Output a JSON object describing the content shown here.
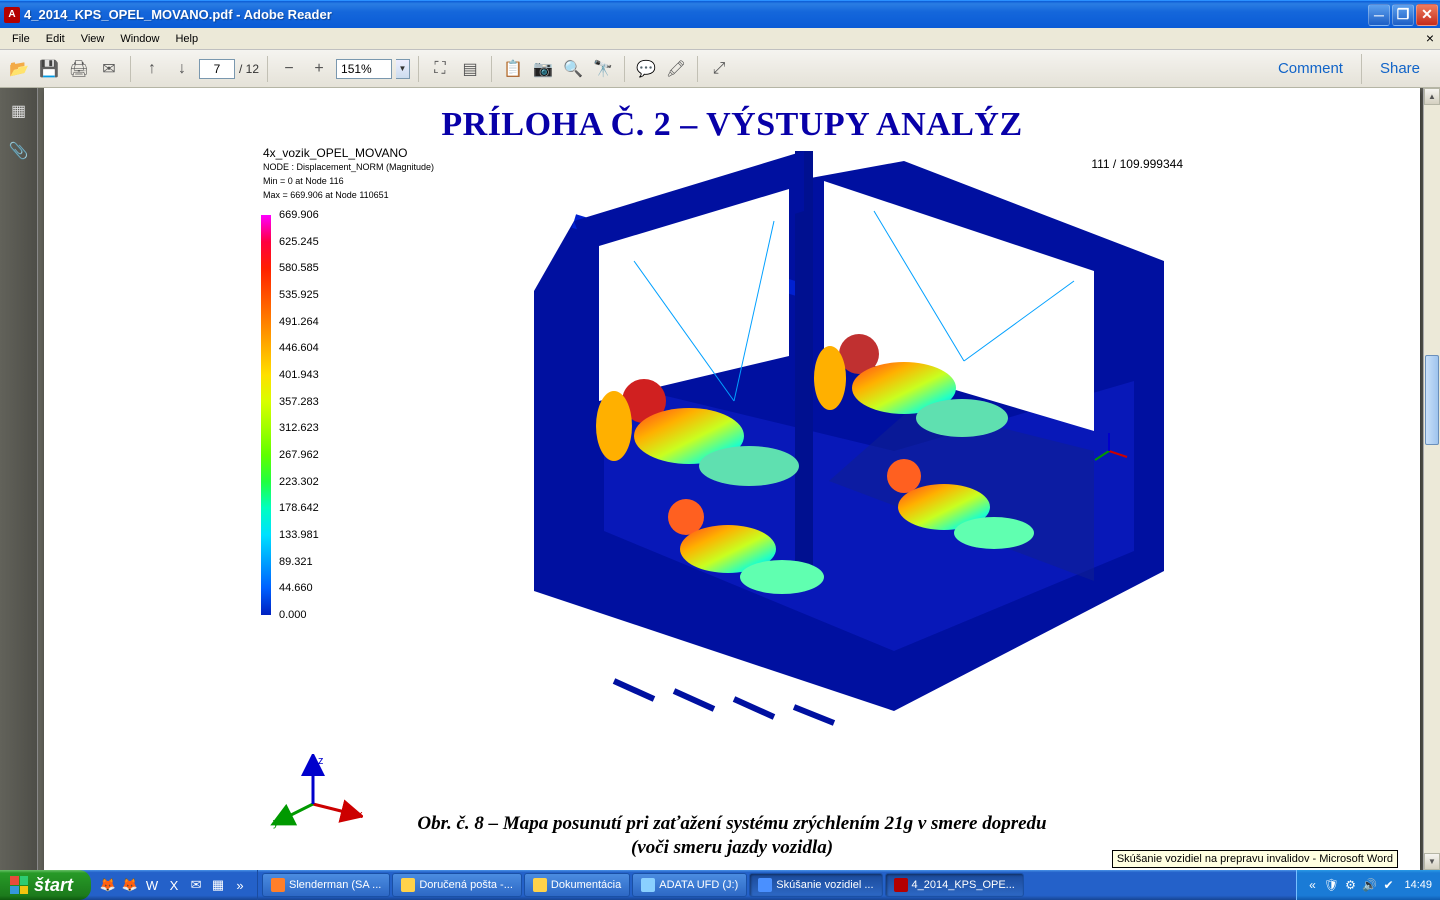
{
  "window": {
    "title": "4_2014_KPS_OPEL_MOVANO.pdf - Adobe Reader",
    "min_glyph": "─",
    "max_glyph": "❐",
    "close_glyph": "✕"
  },
  "menu": {
    "items": [
      "File",
      "Edit",
      "View",
      "Window",
      "Help"
    ],
    "close_glyph": "×"
  },
  "toolbar": {
    "page_current": "7",
    "page_total": "/  12",
    "zoom": "151%",
    "comment": "Comment",
    "share": "Share",
    "icons": {
      "open": "📂",
      "save": "💾",
      "print": "🖨",
      "mail": "✉",
      "up": "↑",
      "down": "↓",
      "minus": "−",
      "plus": "+",
      "fit": "⛶",
      "pagefit": "▤",
      "copy": "📋",
      "camera": "📷",
      "search": "🔍",
      "binoc": "🔭",
      "note": "💬",
      "highlight": "🖍",
      "fullscreen": "⤢"
    }
  },
  "sidebar": {
    "thumb": "▦",
    "attach": "📎"
  },
  "document": {
    "headline": "PRÍLOHA Č. 2 – VÝSTUPY ANALÝZ",
    "meta_title": "4x_vozik_OPEL_MOVANO",
    "meta_l1": "NODE : Displacement_NORM (Magnitude)",
    "meta_l2": "Min = 0 at Node 116",
    "meta_l3": "Max = 669.906 at Node 110651",
    "frame_label": "111 / 109.999344",
    "caption_l1": "Obr. č. 8 – Mapa posunutí pri zaťažení systému zrýchlením 21g v smere dopredu",
    "caption_l2": "(voči smeru jazdy vozidla)",
    "legend": {
      "values": [
        "669.906",
        "625.245",
        "580.585",
        "535.925",
        "491.264",
        "446.604",
        "401.943",
        "357.283",
        "312.623",
        "267.962",
        "223.302",
        "178.642",
        "133.981",
        "89.321",
        "44.660",
        "0.000"
      ],
      "colors": [
        "#ff00ff",
        "#ff0040",
        "#ff2000",
        "#ff5000",
        "#ff8000",
        "#ffb000",
        "#ffe000",
        "#d8ff00",
        "#a0ff00",
        "#60ff00",
        "#20ff40",
        "#00ffc0",
        "#00e0ff",
        "#00a0ff",
        "#0060ff",
        "#0020c0"
      ]
    },
    "triad": {
      "x": "x",
      "y": "y",
      "z": "z"
    },
    "tooltip": "Skúšanie vozidiel na prepravu invalidov - Microsoft Word"
  },
  "taskbar": {
    "start": "štart",
    "tasks": [
      {
        "label": "Slenderman (SA ...",
        "icon_color": "#ff7f2a"
      },
      {
        "label": "Doručená pošta -...",
        "icon_color": "#ffd24a"
      },
      {
        "label": "Dokumentácia",
        "icon_color": "#ffd24a"
      },
      {
        "label": "ADATA UFD (J:)",
        "icon_color": "#8ad0ff"
      },
      {
        "label": "Skúšanie vozidiel ...",
        "icon_color": "#4a90ff",
        "active": true
      },
      {
        "label": "4_2014_KPS_OPE...",
        "icon_color": "#b30000",
        "active": true
      }
    ],
    "clock": "14:49",
    "ql_icons": [
      "🦊",
      "🦊",
      "W",
      "X",
      "✉",
      "▦",
      "»"
    ],
    "tray_icons": [
      "«",
      "🛡",
      "⚙",
      "🔊",
      "✔"
    ]
  }
}
